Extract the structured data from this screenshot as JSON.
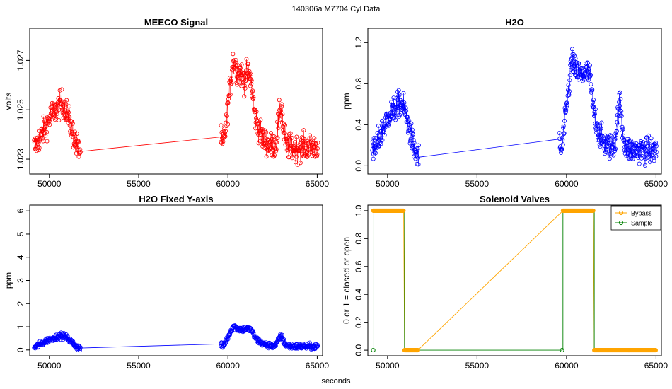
{
  "figure": {
    "title": "140306a    M7704   Cyl Data",
    "xlabel": "seconds"
  },
  "chart_data": [
    {
      "id": "meeco",
      "type": "scatter",
      "title": "MEECO Signal",
      "xlabel": "",
      "ylabel": "volts",
      "xlim": [
        48900,
        65300
      ],
      "ylim": [
        1.0224,
        1.0283
      ],
      "xticks": [
        50000,
        55000,
        60000,
        65000
      ],
      "xtick_labels": [
        "50000",
        "55000",
        "60000",
        "65000"
      ],
      "yticks": [
        1.023,
        1.025,
        1.027
      ],
      "ytick_labels": [
        "1.023",
        "1.025",
        "1.027"
      ],
      "color": "#ff0000",
      "series": [
        {
          "x": [
            49200,
            49500,
            49800,
            50100,
            50400,
            50700,
            50900,
            51100,
            51300,
            51500,
            51700,
            59600,
            59700,
            59900,
            60100,
            60300,
            60500,
            60700,
            60900,
            61100,
            61300,
            61500,
            61700,
            61900,
            62100,
            62300,
            62500,
            62700,
            62900,
            63000,
            63100,
            63300,
            63500,
            63800,
            64100,
            64400,
            64700,
            65000
          ],
          "y": [
            1.0235,
            1.0239,
            1.0243,
            1.0248,
            1.025,
            1.0253,
            1.0251,
            1.0246,
            1.0241,
            1.0236,
            1.0233,
            1.0239,
            1.0235,
            1.0244,
            1.0258,
            1.0271,
            1.0266,
            1.0265,
            1.0262,
            1.0265,
            1.0262,
            1.0248,
            1.0243,
            1.0239,
            1.0237,
            1.0236,
            1.0235,
            1.0237,
            1.0249,
            1.0252,
            1.0242,
            1.0235,
            1.0235,
            1.0234,
            1.0235,
            1.0235,
            1.0235,
            1.0235
          ]
        }
      ],
      "noise": 0.0005
    },
    {
      "id": "h2o",
      "type": "scatter",
      "title": "H2O",
      "xlabel": "",
      "ylabel": "ppm",
      "xlim": [
        48900,
        65300
      ],
      "ylim": [
        -0.08,
        1.34
      ],
      "xticks": [
        50000,
        55000,
        60000,
        65000
      ],
      "xtick_labels": [
        "50000",
        "55000",
        "60000",
        "65000"
      ],
      "yticks": [
        0.0,
        0.4,
        0.8,
        1.2
      ],
      "ytick_labels": [
        "0.0",
        "0.4",
        "0.8",
        "1.2"
      ],
      "color": "#0000ff",
      "series": [
        {
          "x": [
            49200,
            49500,
            49800,
            50100,
            50400,
            50700,
            50900,
            51100,
            51300,
            51500,
            51700,
            59600,
            59700,
            59900,
            60100,
            60300,
            60500,
            60700,
            60900,
            61100,
            61300,
            61500,
            61700,
            61900,
            62100,
            62300,
            62500,
            62700,
            62900,
            63000,
            63100,
            63300,
            63500,
            63800,
            64100,
            64400,
            64700,
            65000
          ],
          "y": [
            0.12,
            0.25,
            0.38,
            0.5,
            0.55,
            0.62,
            0.57,
            0.45,
            0.3,
            0.15,
            0.08,
            0.26,
            0.12,
            0.4,
            0.72,
            1.05,
            0.92,
            0.9,
            0.88,
            0.92,
            0.88,
            0.55,
            0.4,
            0.28,
            0.22,
            0.2,
            0.18,
            0.22,
            0.55,
            0.62,
            0.38,
            0.18,
            0.16,
            0.15,
            0.15,
            0.15,
            0.15,
            0.15
          ]
        }
      ],
      "noise": 0.12
    },
    {
      "id": "h2o-fixed",
      "type": "scatter",
      "title": "H2O Fixed Y-axis",
      "xlabel": "",
      "ylabel": "ppm",
      "xlim": [
        48900,
        65300
      ],
      "ylim": [
        -0.25,
        6.25
      ],
      "xticks": [
        50000,
        55000,
        60000,
        65000
      ],
      "xtick_labels": [
        "50000",
        "55000",
        "60000",
        "65000"
      ],
      "yticks": [
        0,
        1,
        2,
        3,
        4,
        5,
        6
      ],
      "ytick_labels": [
        "0",
        "1",
        "2",
        "3",
        "4",
        "5",
        "6"
      ],
      "color": "#0000ff",
      "series": [
        {
          "x": [
            49200,
            49500,
            49800,
            50100,
            50400,
            50700,
            50900,
            51100,
            51300,
            51500,
            51700,
            59600,
            59700,
            59900,
            60100,
            60300,
            60500,
            60700,
            60900,
            61100,
            61300,
            61500,
            61700,
            61900,
            62100,
            62300,
            62500,
            62700,
            62900,
            63000,
            63100,
            63300,
            63500,
            63800,
            64100,
            64400,
            64700,
            65000
          ],
          "y": [
            0.12,
            0.25,
            0.38,
            0.5,
            0.55,
            0.62,
            0.57,
            0.45,
            0.3,
            0.15,
            0.08,
            0.26,
            0.12,
            0.4,
            0.72,
            1.05,
            0.92,
            0.9,
            0.88,
            0.92,
            0.88,
            0.55,
            0.4,
            0.28,
            0.22,
            0.2,
            0.18,
            0.22,
            0.55,
            0.62,
            0.38,
            0.18,
            0.16,
            0.15,
            0.15,
            0.15,
            0.15,
            0.15
          ]
        }
      ],
      "noise": 0.12
    },
    {
      "id": "valves",
      "type": "line",
      "title": "Solenoid Valves",
      "xlabel": "",
      "ylabel": "0 or 1 = closed or open",
      "xlim": [
        48900,
        65300
      ],
      "ylim": [
        -0.04,
        1.04
      ],
      "xticks": [
        50000,
        55000,
        60000,
        65000
      ],
      "xtick_labels": [
        "50000",
        "55000",
        "60000",
        "65000"
      ],
      "yticks": [
        0.0,
        0.2,
        0.4,
        0.6,
        0.8,
        1.0
      ],
      "ytick_labels": [
        "0.0",
        "0.2",
        "0.4",
        "0.6",
        "0.8",
        "1.0"
      ],
      "legend_position": "top-right",
      "series": [
        {
          "name": "Bypass",
          "color": "#ffa500",
          "segments": [
            {
              "x": [
                49200,
                50900
              ],
              "y": [
                1,
                1
              ]
            },
            {
              "x": [
                50950,
                51700
              ],
              "y": [
                0,
                0
              ]
            },
            {
              "x": [
                59800,
                61500
              ],
              "y": [
                1,
                1
              ]
            },
            {
              "x": [
                61550,
                65000
              ],
              "y": [
                0,
                0
              ]
            }
          ],
          "connectors": [
            {
              "x": [
                50900,
                50950
              ],
              "y": [
                1,
                0
              ]
            },
            {
              "x": [
                51700,
                59800
              ],
              "y": [
                0,
                1
              ]
            },
            {
              "x": [
                61500,
                61550
              ],
              "y": [
                1,
                0
              ]
            }
          ]
        },
        {
          "name": "Sample",
          "color": "#008000",
          "points": [
            {
              "x": 49200,
              "y": 0
            },
            {
              "x": 59750,
              "y": 0
            }
          ],
          "connectors": [
            {
              "x": [
                49200,
                49200
              ],
              "y": [
                0,
                1
              ]
            },
            {
              "x": [
                50950,
                50950
              ],
              "y": [
                0,
                1
              ]
            },
            {
              "x": [
                51700,
                59750
              ],
              "y": [
                0,
                0
              ]
            },
            {
              "x": [
                59800,
                59800
              ],
              "y": [
                0,
                1
              ]
            },
            {
              "x": [
                61550,
                61550
              ],
              "y": [
                0,
                1
              ]
            }
          ]
        }
      ]
    }
  ]
}
